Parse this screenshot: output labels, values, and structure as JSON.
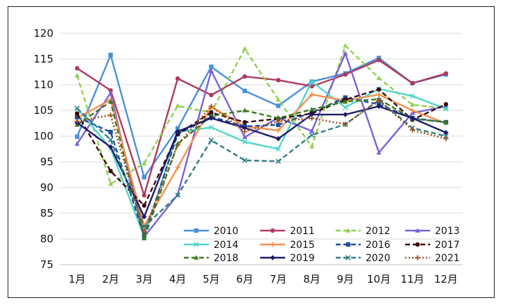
{
  "chart_data": {
    "type": "line",
    "title": "",
    "xlabel": "",
    "ylabel": "",
    "categories": [
      "1月",
      "2月",
      "3月",
      "4月",
      "5月",
      "6月",
      "7月",
      "8月",
      "9月",
      "10月",
      "11月",
      "12月"
    ],
    "ylim": [
      75,
      120
    ],
    "yticks": [
      75,
      80,
      85,
      90,
      95,
      100,
      105,
      110,
      115,
      120
    ],
    "grid": "horizontal",
    "legend": "bottom-right inside plot, 4 columns",
    "series": [
      {
        "name": "2010",
        "color": "#4a8fdc",
        "dash": "solid",
        "marker": "square",
        "values": [
          99.9,
          115.8,
          92.0,
          101.5,
          113.5,
          108.8,
          105.9,
          110.6,
          112.2,
          115.2,
          110.3,
          112.0
        ]
      },
      {
        "name": "2011",
        "color": "#b03a5b",
        "dash": "solid",
        "marker": "circle",
        "values": [
          113.2,
          108.9,
          88.5,
          111.2,
          108.0,
          111.6,
          110.9,
          109.7,
          112.0,
          114.8,
          110.3,
          112.2
        ]
      },
      {
        "name": "2012",
        "color": "#92d050",
        "dash": "dashed",
        "marker": "triangle",
        "values": [
          111.8,
          90.7,
          94.7,
          105.9,
          104.6,
          117.0,
          107.1,
          98.0,
          117.6,
          111.3,
          106.1,
          105.4
        ]
      },
      {
        "name": "2013",
        "color": "#7b61d9",
        "dash": "solid",
        "marker": "triangle",
        "values": [
          98.5,
          108.4,
          80.4,
          88.6,
          112.7,
          99.8,
          103.6,
          101.0,
          116.1,
          96.8,
          104.5,
          105.8
        ]
      },
      {
        "name": "2014",
        "color": "#4fd6c8",
        "dash": "solid",
        "marker": "x",
        "values": [
          105.4,
          97.6,
          80.4,
          100.8,
          101.7,
          98.9,
          97.5,
          110.6,
          105.6,
          109.2,
          107.8,
          105.3
        ]
      },
      {
        "name": "2015",
        "color": "#f6904d",
        "dash": "solid",
        "marker": "plus",
        "values": [
          103.5,
          107.1,
          82.5,
          93.9,
          105.7,
          101.9,
          101.1,
          108.1,
          106.9,
          108.1,
          105.0,
          102.5
        ]
      },
      {
        "name": "2016",
        "color": "#1f4e9c",
        "dash": "dashed",
        "marker": "square",
        "values": [
          103.7,
          100.8,
          80.6,
          100.4,
          103.8,
          101.9,
          102.2,
          104.6,
          107.5,
          106.2,
          103.5,
          102.7
        ]
      },
      {
        "name": "2017",
        "color": "#3a0a0a",
        "dash": "dashed",
        "marker": "circle",
        "values": [
          104.4,
          93.2,
          86.5,
          100.4,
          104.6,
          102.7,
          103.4,
          104.4,
          107.1,
          109.1,
          103.2,
          106.2
        ]
      },
      {
        "name": "2018",
        "color": "#3d7a1e",
        "dash": "dashed",
        "marker": "triangle",
        "values": [
          102.2,
          106.7,
          80.1,
          98.5,
          103.9,
          105.0,
          103.5,
          105.2,
          106.7,
          107.2,
          103.4,
          102.7
        ]
      },
      {
        "name": "2019",
        "color": "#1c1a6b",
        "dash": "solid",
        "marker": "diamond",
        "values": [
          102.6,
          97.9,
          84.3,
          100.9,
          103.5,
          101.6,
          99.5,
          104.2,
          104.2,
          105.8,
          103.5,
          100.7
        ]
      },
      {
        "name": "2020",
        "color": "#2e7e86",
        "dash": "dashed",
        "marker": "x",
        "values": [
          105.4,
          99.3,
          82.4,
          88.5,
          99.2,
          95.3,
          95.1,
          100.2,
          102.3,
          107.0,
          101.6,
          100.0
        ]
      },
      {
        "name": "2021",
        "color": "#a0521e",
        "dash": "dotted",
        "marker": "plus",
        "values": [
          102.9,
          104.1,
          81.5,
          98.3,
          105.8,
          100.9,
          102.9,
          103.5,
          102.3,
          107.0,
          101.2,
          99.5
        ]
      }
    ]
  }
}
